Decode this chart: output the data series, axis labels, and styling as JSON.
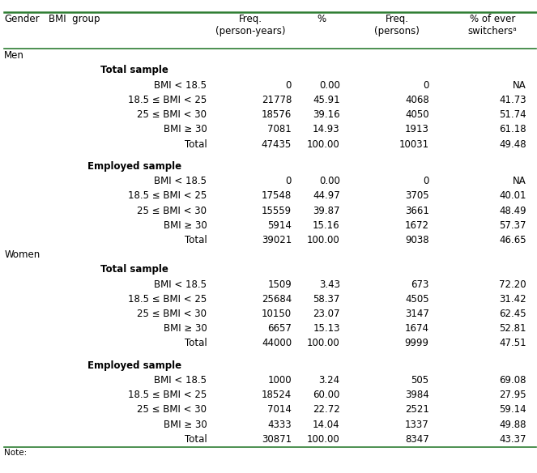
{
  "col_headers": [
    "Gender",
    "BMI  group",
    "Freq.\n(person-years)",
    "%",
    "Freq.\n(persons)",
    "% of ever\nswitchersᵃ"
  ],
  "rows": [
    {
      "type": "gender",
      "col0": "Men",
      "col1": "",
      "col2": "",
      "col3": "",
      "col4": "",
      "col5": ""
    },
    {
      "type": "section",
      "col0": "",
      "col1": "Total sample",
      "col2": "",
      "col3": "",
      "col4": "",
      "col5": ""
    },
    {
      "type": "data",
      "col0": "",
      "col1": "BMI < 18.5",
      "col2": "0",
      "col3": "0.00",
      "col4": "0",
      "col5": "NA"
    },
    {
      "type": "data",
      "col0": "",
      "col1": "18.5 ≤ BMI < 25",
      "col2": "21778",
      "col3": "45.91",
      "col4": "4068",
      "col5": "41.73"
    },
    {
      "type": "data",
      "col0": "",
      "col1": "25 ≤ BMI < 30",
      "col2": "18576",
      "col3": "39.16",
      "col4": "4050",
      "col5": "51.74"
    },
    {
      "type": "data",
      "col0": "",
      "col1": "BMI ≥ 30",
      "col2": "7081",
      "col3": "14.93",
      "col4": "1913",
      "col5": "61.18"
    },
    {
      "type": "total",
      "col0": "",
      "col1": "Total",
      "col2": "47435",
      "col3": "100.00",
      "col4": "10031",
      "col5": "49.48"
    },
    {
      "type": "blank",
      "col0": "",
      "col1": "",
      "col2": "",
      "col3": "",
      "col4": "",
      "col5": ""
    },
    {
      "type": "section",
      "col0": "",
      "col1": "Employed sample",
      "col2": "",
      "col3": "",
      "col4": "",
      "col5": ""
    },
    {
      "type": "data",
      "col0": "",
      "col1": "BMI < 18.5",
      "col2": "0",
      "col3": "0.00",
      "col4": "0",
      "col5": "NA"
    },
    {
      "type": "data",
      "col0": "",
      "col1": "18.5 ≤ BMI < 25",
      "col2": "17548",
      "col3": "44.97",
      "col4": "3705",
      "col5": "40.01"
    },
    {
      "type": "data",
      "col0": "",
      "col1": "25 ≤ BMI < 30",
      "col2": "15559",
      "col3": "39.87",
      "col4": "3661",
      "col5": "48.49"
    },
    {
      "type": "data",
      "col0": "",
      "col1": "BMI ≥ 30",
      "col2": "5914",
      "col3": "15.16",
      "col4": "1672",
      "col5": "57.37"
    },
    {
      "type": "total",
      "col0": "",
      "col1": "Total",
      "col2": "39021",
      "col3": "100.00",
      "col4": "9038",
      "col5": "46.65"
    },
    {
      "type": "gender",
      "col0": "Women",
      "col1": "",
      "col2": "",
      "col3": "",
      "col4": "",
      "col5": ""
    },
    {
      "type": "section",
      "col0": "",
      "col1": "Total sample",
      "col2": "",
      "col3": "",
      "col4": "",
      "col5": ""
    },
    {
      "type": "data",
      "col0": "",
      "col1": "BMI < 18.5",
      "col2": "1509",
      "col3": "3.43",
      "col4": "673",
      "col5": "72.20"
    },
    {
      "type": "data",
      "col0": "",
      "col1": "18.5 ≤ BMI < 25",
      "col2": "25684",
      "col3": "58.37",
      "col4": "4505",
      "col5": "31.42"
    },
    {
      "type": "data",
      "col0": "",
      "col1": "25 ≤ BMI < 30",
      "col2": "10150",
      "col3": "23.07",
      "col4": "3147",
      "col5": "62.45"
    },
    {
      "type": "data",
      "col0": "",
      "col1": "BMI ≥ 30",
      "col2": "6657",
      "col3": "15.13",
      "col4": "1674",
      "col5": "52.81"
    },
    {
      "type": "total",
      "col0": "",
      "col1": "Total",
      "col2": "44000",
      "col3": "100.00",
      "col4": "9999",
      "col5": "47.51"
    },
    {
      "type": "blank",
      "col0": "",
      "col1": "",
      "col2": "",
      "col3": "",
      "col4": "",
      "col5": ""
    },
    {
      "type": "section",
      "col0": "",
      "col1": "Employed sample",
      "col2": "",
      "col3": "",
      "col4": "",
      "col5": ""
    },
    {
      "type": "data",
      "col0": "",
      "col1": "BMI < 18.5",
      "col2": "1000",
      "col3": "3.24",
      "col4": "505",
      "col5": "69.08"
    },
    {
      "type": "data",
      "col0": "",
      "col1": "18.5 ≤ BMI < 25",
      "col2": "18524",
      "col3": "60.00",
      "col4": "3984",
      "col5": "27.95"
    },
    {
      "type": "data",
      "col0": "",
      "col1": "25 ≤ BMI < 30",
      "col2": "7014",
      "col3": "22.72",
      "col4": "2521",
      "col5": "59.14"
    },
    {
      "type": "data",
      "col0": "",
      "col1": "BMI ≥ 30",
      "col2": "4333",
      "col3": "14.04",
      "col4": "1337",
      "col5": "49.88"
    },
    {
      "type": "total",
      "col0": "",
      "col1": "Total",
      "col2": "30871",
      "col3": "100.00",
      "col4": "8347",
      "col5": "43.37"
    }
  ],
  "note": "Note:",
  "line_color": "#2e7d32",
  "bg_color": "#ffffff",
  "text_color": "#000000",
  "font_size": 8.5,
  "fig_width": 6.63,
  "fig_height": 5.84,
  "dpi": 100
}
